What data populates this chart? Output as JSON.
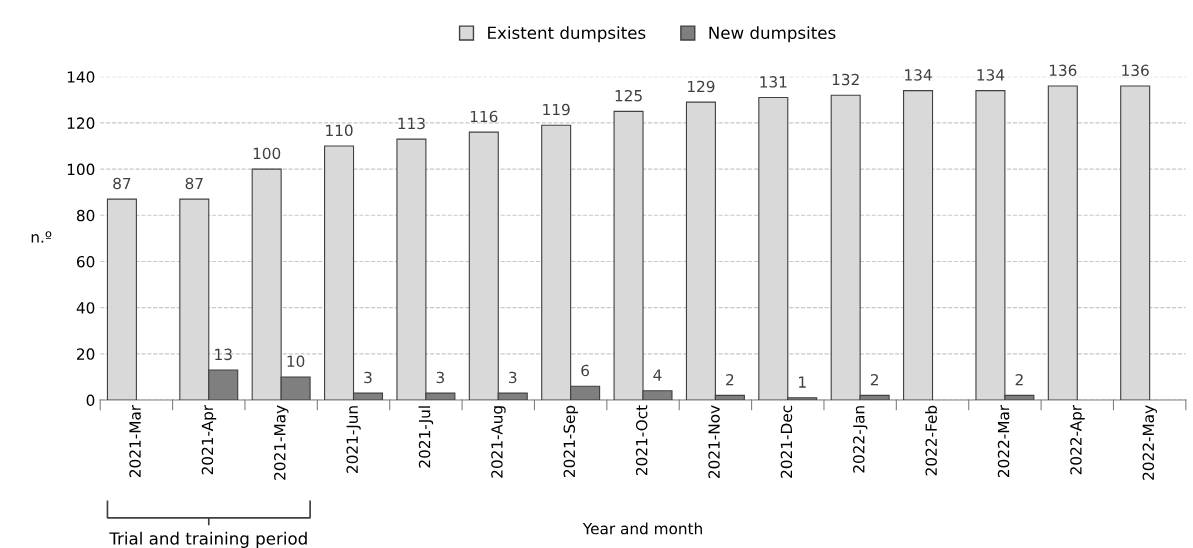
{
  "chart_data": {
    "type": "bar",
    "xlabel": "Year and month",
    "ylabel": "n.º",
    "categories": [
      "2021-Mar",
      "2021-Apr",
      "2021-May",
      "2021-Jun",
      "2021-Jul",
      "2021-Aug",
      "2021-Sep",
      "2021-Oct",
      "2021-Nov",
      "2021-Dec",
      "2022-Jan",
      "2022-Feb",
      "2022-Mar",
      "2022-Apr",
      "2022-May"
    ],
    "series": [
      {
        "name": "Existent dumpsites",
        "color": "#d9d9d9",
        "values": [
          87,
          87,
          100,
          110,
          113,
          116,
          119,
          125,
          129,
          131,
          132,
          134,
          134,
          136,
          136
        ],
        "value_labels": [
          "87",
          "87",
          "100",
          "110",
          "113",
          "116",
          "119",
          "125",
          "129",
          "131",
          "132",
          "134",
          "134",
          "136",
          "136"
        ]
      },
      {
        "name": "New dumpsites",
        "color": "#7f7f7f",
        "values": [
          null,
          13,
          10,
          3,
          3,
          3,
          6,
          4,
          2,
          1,
          2,
          null,
          2,
          null,
          null
        ],
        "value_labels": [
          null,
          "13",
          "10",
          "3",
          "3",
          "3",
          "6",
          "4",
          "2",
          "1",
          "2",
          null,
          "2",
          null,
          null
        ]
      }
    ],
    "ylim": [
      0,
      140
    ],
    "yticks": [
      0,
      20,
      40,
      60,
      80,
      100,
      120,
      140
    ],
    "grid": "y",
    "legend": "top",
    "annotations": [
      "Trial and training period"
    ]
  }
}
